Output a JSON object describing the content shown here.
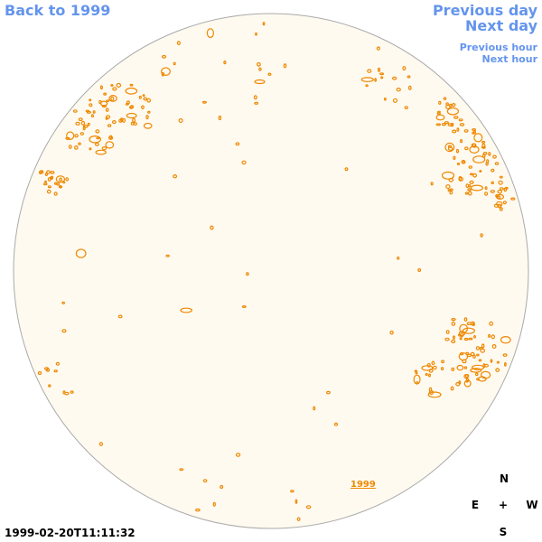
{
  "nav": {
    "back": "Back to 1999",
    "previous_day": "Previous day",
    "next_day": "Next day",
    "previous_hour": "Previous hour",
    "next_hour": "Next hour"
  },
  "timestamp": "1999-02-20T11:11:32",
  "compass": {
    "n": "N",
    "e": "E",
    "w": "W",
    "s": "S",
    "center": "+"
  },
  "disk_label": "1999",
  "colors": {
    "disk_fill": "#fffaf0",
    "disk_stroke": "#aaaaaa",
    "feature": "#ee8800",
    "link": "#6495ed"
  }
}
